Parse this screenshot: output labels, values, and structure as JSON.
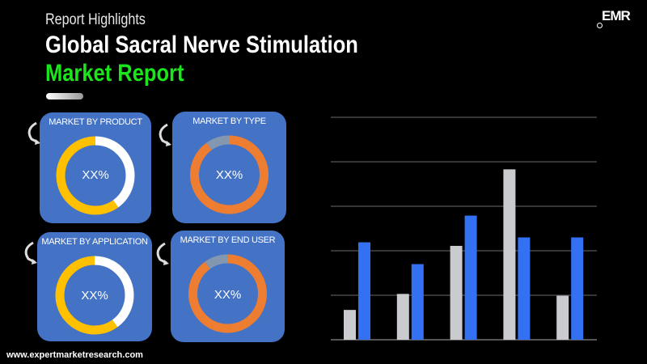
{
  "header": {
    "kicker": "Report Highlights",
    "title_line1": "Global Sacral Nerve Stimulation",
    "title_line2": "Market Report",
    "logo_text": "EMR"
  },
  "colors": {
    "title_green": "#1be51b",
    "panel_blue": "#4472c4",
    "donut_yellow": "#ffc000",
    "donut_white": "#ffffff",
    "donut_orange": "#ed7d31",
    "donut_gray": "#8497b0",
    "bar_gray": "#c9cbcf",
    "bar_blue": "#3371f2"
  },
  "panels": [
    {
      "title": "MARKET BY PRODUCT",
      "value": "XX%",
      "segments": [
        {
          "color": "#ffffff",
          "fraction": 0.4
        },
        {
          "color": "#ffc000",
          "fraction": 0.6
        }
      ]
    },
    {
      "title": "MARKET BY TYPE",
      "value": "XX%",
      "segments": [
        {
          "color": "#ed7d31",
          "fraction": 0.9
        },
        {
          "color": "#8497b0",
          "fraction": 0.1
        }
      ]
    },
    {
      "title": "MARKET BY APPLICATION",
      "value": "XX%",
      "segments": [
        {
          "color": "#ffffff",
          "fraction": 0.4
        },
        {
          "color": "#ffc000",
          "fraction": 0.6
        }
      ]
    },
    {
      "title": "MARKET BY END USER",
      "value": "XX%",
      "segments": [
        {
          "color": "#ed7d31",
          "fraction": 0.9
        },
        {
          "color": "#8497b0",
          "fraction": 0.1
        }
      ]
    }
  ],
  "chart_data": {
    "type": "bar",
    "title": "",
    "xlabel": "",
    "ylabel": "",
    "categories": [
      "",
      "",
      "",
      "",
      ""
    ],
    "ylim": [
      0,
      5
    ],
    "grid": true,
    "series": [
      {
        "color": "#c9cbcf",
        "values": [
          0.67,
          1.03,
          2.11,
          3.83,
          0.99
        ]
      },
      {
        "color": "#3371f2",
        "values": [
          2.19,
          1.7,
          2.79,
          2.3,
          2.3
        ]
      }
    ]
  },
  "footer": {
    "url": "www.expertmarketresearch.com"
  }
}
